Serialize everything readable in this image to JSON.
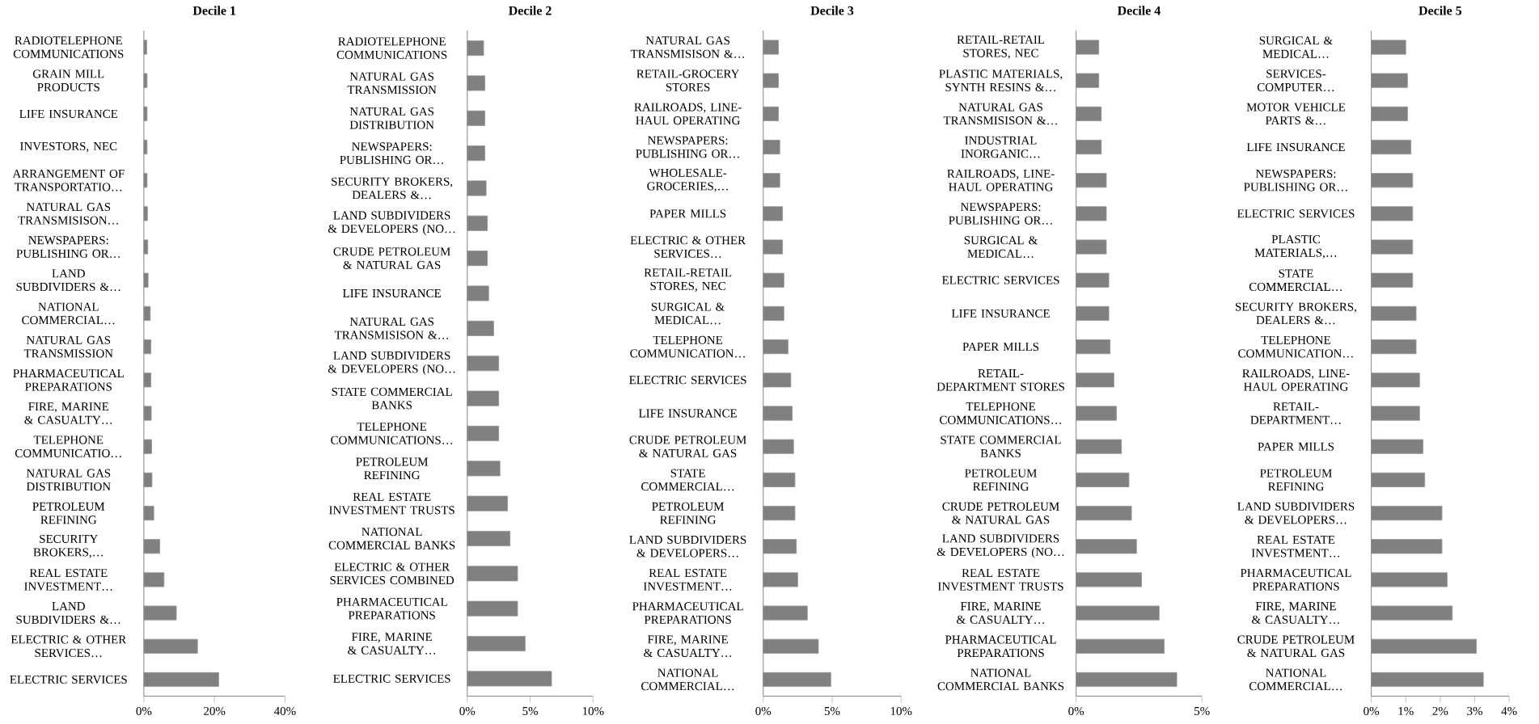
{
  "chart_data": [
    {
      "type": "bar",
      "orientation": "horizontal",
      "title": "Decile 1",
      "color": "#808080",
      "xlim": [
        0,
        40
      ],
      "xticks": [
        {
          "value": 0,
          "label": "0%"
        },
        {
          "value": 20,
          "label": "20%"
        },
        {
          "value": 40,
          "label": "40%"
        }
      ],
      "categories": [
        "RADIOTELEPHONE COMMUNICATIONS",
        "GRAIN MILL PRODUCTS",
        "LIFE INSURANCE",
        "INVESTORS, NEC",
        "ARRANGEMENT OF TRANSPORTATIO…",
        "NATURAL GAS TRANSMISISON…",
        "NEWSPAPERS: PUBLISHING OR…",
        "LAND SUBDIVIDERS &…",
        "NATIONAL COMMERCIAL…",
        "NATURAL GAS TRANSMISSION",
        "PHARMACEUTICAL PREPARATIONS",
        "FIRE, MARINE & CASUALTY…",
        "TELEPHONE COMMUNICATIO…",
        "NATURAL GAS DISTRIBUTION",
        "PETROLEUM REFINING",
        "SECURITY BROKERS,…",
        "REAL ESTATE INVESTMENT…",
        "LAND SUBDIVIDERS &…",
        "ELECTRIC & OTHER SERVICES…",
        "ELECTRIC SERVICES"
      ],
      "values": [
        0.8,
        0.9,
        0.9,
        0.9,
        0.9,
        1.0,
        1.1,
        1.2,
        1.8,
        2.0,
        2.0,
        2.1,
        2.2,
        2.3,
        2.8,
        4.5,
        5.7,
        9.2,
        15.2,
        21.2
      ]
    },
    {
      "type": "bar",
      "orientation": "horizontal",
      "title": "Decile 2",
      "color": "#808080",
      "xlim": [
        0,
        10
      ],
      "xticks": [
        {
          "value": 0,
          "label": "0%"
        },
        {
          "value": 5,
          "label": "5%"
        },
        {
          "value": 10,
          "label": "10%"
        }
      ],
      "categories": [
        "RADIOTELEPHONE COMMUNICATIONS",
        "NATURAL GAS TRANSMISSION",
        "NATURAL GAS DISTRIBUTION",
        "NEWSPAPERS: PUBLISHING OR…",
        "SECURITY BROKERS, DEALERS &…",
        "LAND SUBDIVIDERS & DEVELOPERS (NO…",
        "CRUDE PETROLEUM & NATURAL GAS",
        "LIFE INSURANCE",
        "NATURAL GAS TRANSMISISON &…",
        "LAND SUBDIVIDERS & DEVELOPERS (NO…",
        "STATE COMMERCIAL BANKS",
        "TELEPHONE COMMUNICATIONS…",
        "PETROLEUM REFINING",
        "REAL ESTATE INVESTMENT TRUSTS",
        "NATIONAL COMMERCIAL BANKS",
        "ELECTRIC & OTHER SERVICES COMBINED",
        "PHARMACEUTICAL PREPARATIONS",
        "FIRE, MARINE & CASUALTY…",
        "ELECTRIC SERVICES"
      ],
      "values": [
        1.3,
        1.4,
        1.4,
        1.4,
        1.5,
        1.6,
        1.6,
        1.7,
        2.1,
        2.5,
        2.5,
        2.5,
        2.6,
        3.2,
        3.4,
        4.0,
        4.0,
        4.6,
        6.7
      ]
    },
    {
      "type": "bar",
      "orientation": "horizontal",
      "title": "Decile 3",
      "color": "#808080",
      "xlim": [
        0,
        10
      ],
      "xticks": [
        {
          "value": 0,
          "label": "0%"
        },
        {
          "value": 5,
          "label": "5%"
        },
        {
          "value": 10,
          "label": "10%"
        }
      ],
      "categories": [
        "NATURAL GAS TRANSMISISON &…",
        "RETAIL-GROCERY STORES",
        "RAILROADS, LINE-HAUL OPERATING",
        "NEWSPAPERS: PUBLISHING OR…",
        "WHOLESALE-GROCERIES,…",
        "PAPER MILLS",
        "ELECTRIC & OTHER SERVICES…",
        "RETAIL-RETAIL STORES, NEC",
        "SURGICAL & MEDICAL…",
        "TELEPHONE COMMUNICATION…",
        "ELECTRIC SERVICES",
        "LIFE INSURANCE",
        "CRUDE PETROLEUM & NATURAL GAS",
        "STATE COMMERCIAL…",
        "PETROLEUM REFINING",
        "LAND SUBDIVIDERS & DEVELOPERS…",
        "REAL ESTATE INVESTMENT…",
        "PHARMACEUTICAL PREPARATIONS",
        "FIRE, MARINE & CASUALTY…",
        "NATIONAL COMMERCIAL…"
      ],
      "values": [
        1.1,
        1.1,
        1.1,
        1.2,
        1.2,
        1.4,
        1.4,
        1.5,
        1.5,
        1.8,
        2.0,
        2.1,
        2.2,
        2.3,
        2.3,
        2.4,
        2.5,
        3.2,
        4.0,
        4.9
      ]
    },
    {
      "type": "bar",
      "orientation": "horizontal",
      "title": "Decile 4",
      "color": "#808080",
      "xlim": [
        0,
        5
      ],
      "xticks": [
        {
          "value": 0,
          "label": "0%"
        },
        {
          "value": 5,
          "label": "5%"
        }
      ],
      "categories": [
        "RETAIL-RETAIL STORES, NEC",
        "PLASTIC MATERIALS, SYNTH RESINS &…",
        "NATURAL GAS TRANSMISISON &…",
        "INDUSTRIAL INORGANIC…",
        "RAILROADS, LINE-HAUL OPERATING",
        "NEWSPAPERS: PUBLISHING OR…",
        "SURGICAL & MEDICAL…",
        "ELECTRIC SERVICES",
        "LIFE INSURANCE",
        "PAPER MILLS",
        "RETAIL-DEPARTMENT STORES",
        "TELEPHONE COMMUNICATIONS…",
        "STATE COMMERCIAL BANKS",
        "PETROLEUM REFINING",
        "CRUDE PETROLEUM & NATURAL GAS",
        "LAND SUBDIVIDERS & DEVELOPERS (NO…",
        "REAL ESTATE INVESTMENT TRUSTS",
        "FIRE, MARINE & CASUALTY…",
        "PHARMACEUTICAL PREPARATIONS",
        "NATIONAL COMMERCIAL BANKS"
      ],
      "values": [
        0.9,
        0.9,
        1.0,
        1.0,
        1.2,
        1.2,
        1.2,
        1.3,
        1.3,
        1.35,
        1.5,
        1.6,
        1.8,
        2.1,
        2.2,
        2.4,
        2.6,
        3.3,
        3.5,
        4.0
      ]
    },
    {
      "type": "bar",
      "orientation": "horizontal",
      "title": "Decile 5",
      "color": "#808080",
      "xlim": [
        0,
        4
      ],
      "xticks": [
        {
          "value": 0,
          "label": "0%"
        },
        {
          "value": 1,
          "label": "1%"
        },
        {
          "value": 2,
          "label": "2%"
        },
        {
          "value": 3,
          "label": "3%"
        },
        {
          "value": 4,
          "label": "4%"
        }
      ],
      "categories": [
        "SURGICAL & MEDICAL…",
        "SERVICES-COMPUTER…",
        "MOTOR VEHICLE PARTS &…",
        "LIFE INSURANCE",
        "NEWSPAPERS: PUBLISHING OR…",
        "ELECTRIC SERVICES",
        "PLASTIC MATERIALS,…",
        "STATE COMMERCIAL…",
        "SECURITY BROKERS, DEALERS &…",
        "TELEPHONE COMMUNICATION…",
        "RAILROADS, LINE-HAUL OPERATING",
        "RETAIL-DEPARTMENT…",
        "PAPER MILLS",
        "PETROLEUM REFINING",
        "LAND SUBDIVIDERS & DEVELOPERS…",
        "REAL ESTATE INVESTMENT…",
        "PHARMACEUTICAL PREPARATIONS",
        "FIRE, MARINE & CASUALTY…",
        "CRUDE PETROLEUM & NATURAL GAS",
        "NATIONAL COMMERCIAL…"
      ],
      "values": [
        1.0,
        1.05,
        1.05,
        1.15,
        1.2,
        1.2,
        1.2,
        1.2,
        1.3,
        1.3,
        1.4,
        1.4,
        1.5,
        1.55,
        2.05,
        2.05,
        2.2,
        2.35,
        3.05,
        3.25
      ]
    }
  ]
}
